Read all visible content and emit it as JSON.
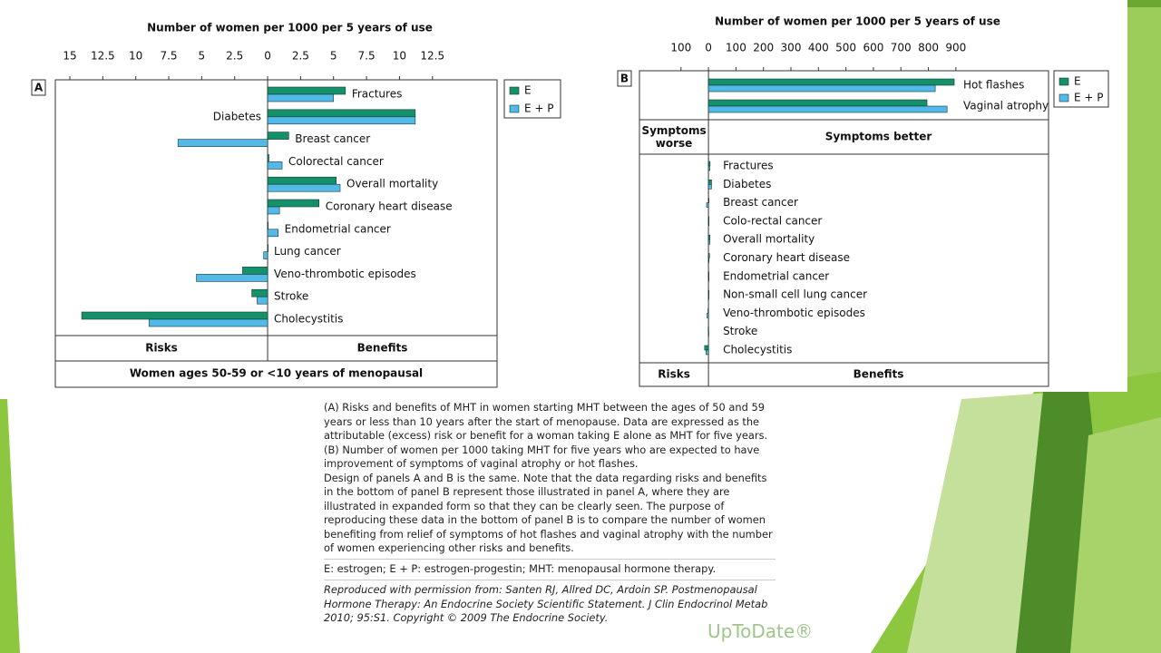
{
  "chart_data": [
    {
      "type": "bar",
      "orientation": "horizontal",
      "panel_label": "A",
      "title": "Number of women per 1000 per 5 years of use",
      "categories": [
        "Fractures",
        "Diabetes",
        "Breast cancer",
        "Colorectal cancer",
        "Overall mortality",
        "Coronary heart disease",
        "Endometrial cancer",
        "Lung cancer",
        "Veno-thrombotic episodes",
        "Stroke",
        "Cholecystitis"
      ],
      "series": [
        {
          "name": "E",
          "color": "#14906a",
          "values": [
            5.9,
            11.2,
            1.6,
            0.1,
            5.2,
            3.9,
            0,
            0,
            -1.9,
            -1.2,
            -14.1
          ]
        },
        {
          "name": "E + P",
          "color": "#52b9e9",
          "values": [
            5.0,
            11.2,
            -6.8,
            1.1,
            5.5,
            0.9,
            0.8,
            -0.3,
            -5.4,
            -0.8,
            -9.0
          ]
        }
      ],
      "xlim": [
        -16.1,
        17.4
      ],
      "xticks": [
        {
          "value": -15,
          "label": "15"
        },
        {
          "value": -12.5,
          "label": "12.5"
        },
        {
          "value": -10,
          "label": "10"
        },
        {
          "value": -7.5,
          "label": "7.5"
        },
        {
          "value": -5,
          "label": "5"
        },
        {
          "value": -2.5,
          "label": "2.5"
        },
        0,
        2.5,
        5,
        7.5,
        10,
        12.5
      ],
      "footer_left": "Risks",
      "footer_right": "Benefits",
      "footnote": "Women ages 50-59 or <10 years of menopausal",
      "legend": "right"
    },
    {
      "type": "bar",
      "orientation": "horizontal",
      "panel_label": "B",
      "title": "Number of women per 1000 per 5 years of use",
      "categories": [
        "Hot flashes",
        "Vaginal atrophy",
        "Fractures",
        "Diabetes",
        "Breast cancer",
        "Colo-rectal cancer",
        "Overall mortality",
        "Coronary heart disease",
        "Endometrial cancer",
        "Non-small cell lung cancer",
        "Veno-thrombotic episodes",
        "Stroke",
        "Cholecystitis"
      ],
      "series": [
        {
          "name": "E",
          "color": "#14906a",
          "values": [
            894,
            795,
            5.9,
            11.2,
            1.6,
            0.1,
            5.2,
            3.9,
            0,
            0,
            -1.9,
            -1.2,
            -14.1
          ]
        },
        {
          "name": "E + P",
          "color": "#52b9e9",
          "values": [
            825,
            868,
            5.0,
            11.2,
            -6.8,
            1.1,
            5.5,
            0.9,
            0.8,
            -0.3,
            -5.4,
            -0.8,
            -9.0
          ]
        }
      ],
      "xlim": [
        -251,
        1237
      ],
      "xticks": [
        {
          "value": -100,
          "label": "100"
        },
        0,
        100,
        200,
        300,
        400,
        500,
        600,
        700,
        800,
        900
      ],
      "header_left": "Symptoms worse",
      "header_right": "Symptoms better",
      "footer_left": "Risks",
      "footer_right": "Benefits",
      "legend": "right"
    }
  ],
  "caption": {
    "paragraphs": [
      "(A) Risks and benefits of MHT in women starting MHT between the ages of 50 and 59 years or less than 10 years after the start of menopause. Data are expressed as the attributable (excess) risk or benefit for a woman taking E alone as MHT for five years.",
      "(B) Number of women per 1000 taking MHT for five years who are expected to have improvement of symptoms of vaginal atrophy or hot flashes.",
      "Design of panels A and B is the same. Note that the data regarding risks and benefits in the bottom of panel B represent those illustrated in panel A, where they are illustrated in expanded form so that they can be clearly seen. The purpose of reproducing these data in the bottom of panel B is to compare the number of women benefiting from relief of symptoms of hot flashes and vaginal atrophy with the number of women experiencing other risks and benefits."
    ],
    "abbreviations": "E: estrogen; E + P: estrogen-progestin; MHT: menopausal hormone therapy.",
    "source": "Reproduced with permission from: Santen RJ, Allred DC, Ardoin SP. Postmenopausal Hormone Therapy: An Endocrine Society Scientific Statement. J Clin Endocrinol Metab 2010; 95:S1. Copyright © 2009 The Endocrine Society.",
    "logo": "UpToDate®"
  }
}
